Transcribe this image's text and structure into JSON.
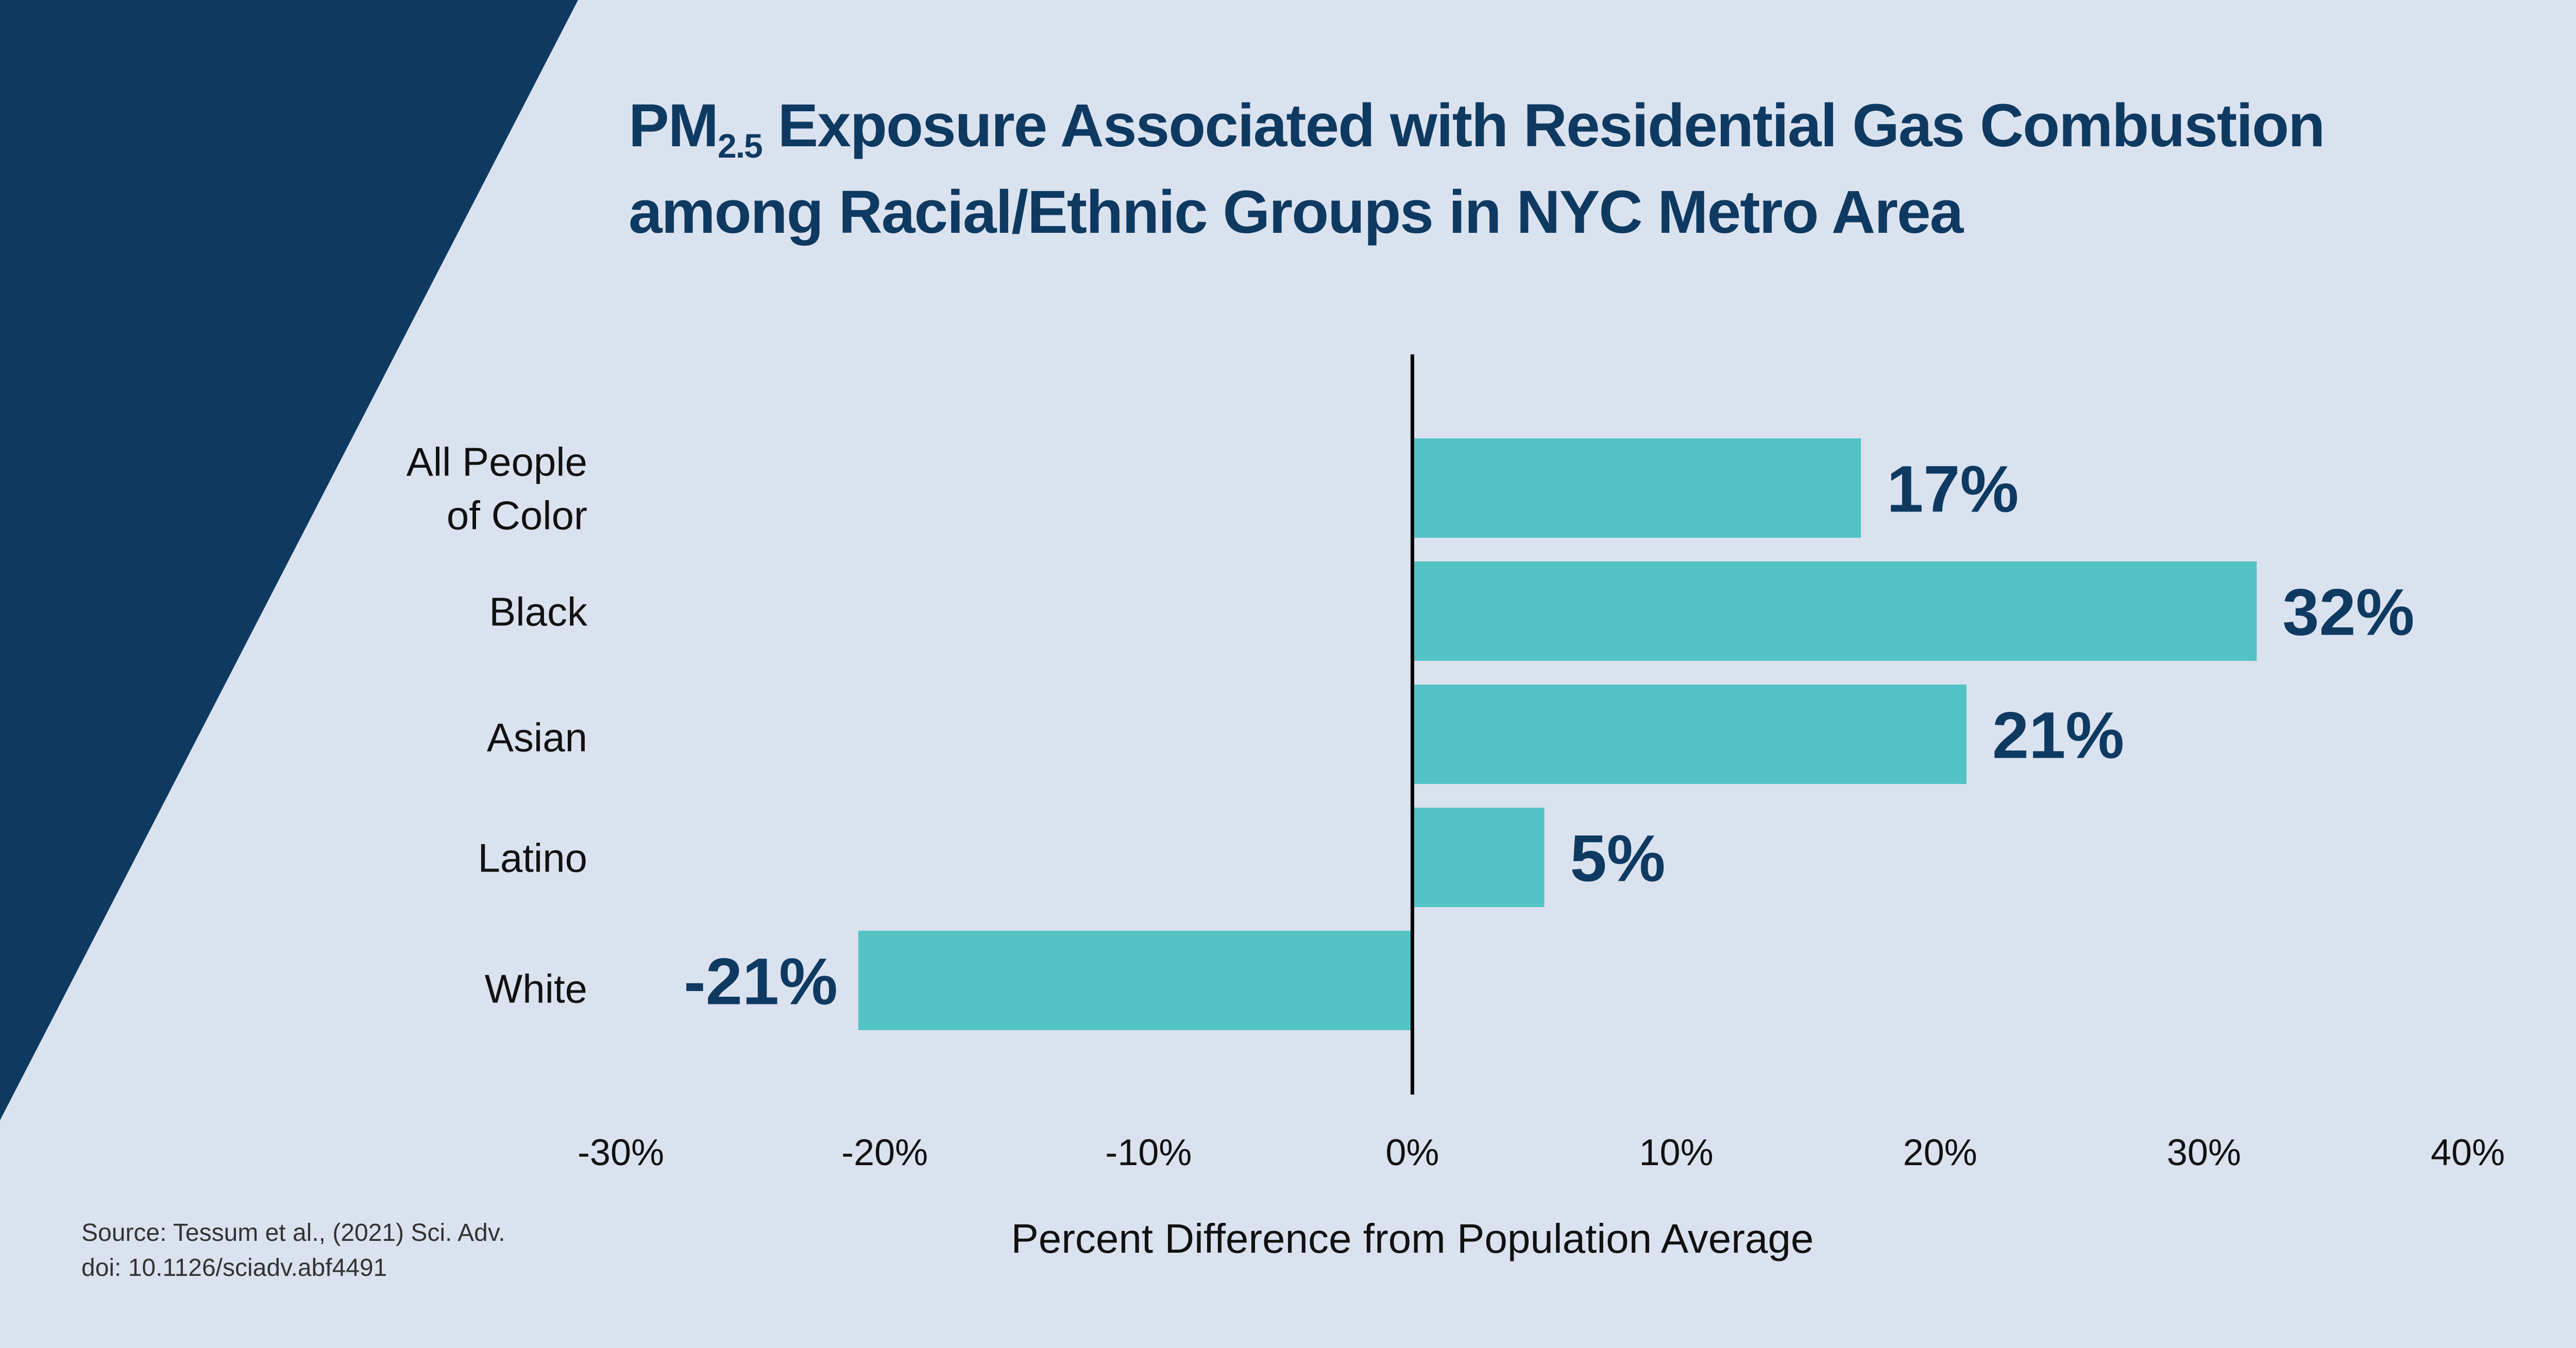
{
  "colors": {
    "background": "#dbe2ef",
    "accent_shape": "#0e3a62",
    "bar": "#54c3c5",
    "value_label": "#0e3a62",
    "axis": "#000000"
  },
  "title": {
    "pm": "PM",
    "subscript": "2.5",
    "line1_rest": " Exposure Associated with Residential Gas Combustion",
    "line2": "among Racial/Ethnic Groups in NYC Metro Area"
  },
  "source": {
    "line1": "Source: Tessum et al., (2021) Sci. Adv.",
    "line2": "doi: 10.1126/sciadv.abf4491"
  },
  "chart_data": {
    "type": "bar",
    "orientation": "horizontal",
    "title": "PM2.5 Exposure Associated with Residential Gas Combustion among Racial/Ethnic Groups in NYC Metro Area",
    "categories": [
      [
        "All People",
        "of Color"
      ],
      [
        "Black"
      ],
      [
        "Asian"
      ],
      [
        "Latino"
      ],
      [
        "White"
      ]
    ],
    "values": [
      17,
      32,
      21,
      5,
      -21
    ],
    "value_labels": [
      "17%",
      "32%",
      "21%",
      "5%",
      "-21%"
    ],
    "xlabel": "Percent Difference from Population Average",
    "ylabel": "",
    "xlim": [
      -30,
      40
    ],
    "xticks": [
      -30,
      -20,
      -10,
      0,
      10,
      20,
      30,
      40
    ],
    "xtick_labels": [
      "-30%",
      "-20%",
      "-10%",
      "0%",
      "10%",
      "20%",
      "30%",
      "40%"
    ],
    "grid": false,
    "legend": "none"
  }
}
